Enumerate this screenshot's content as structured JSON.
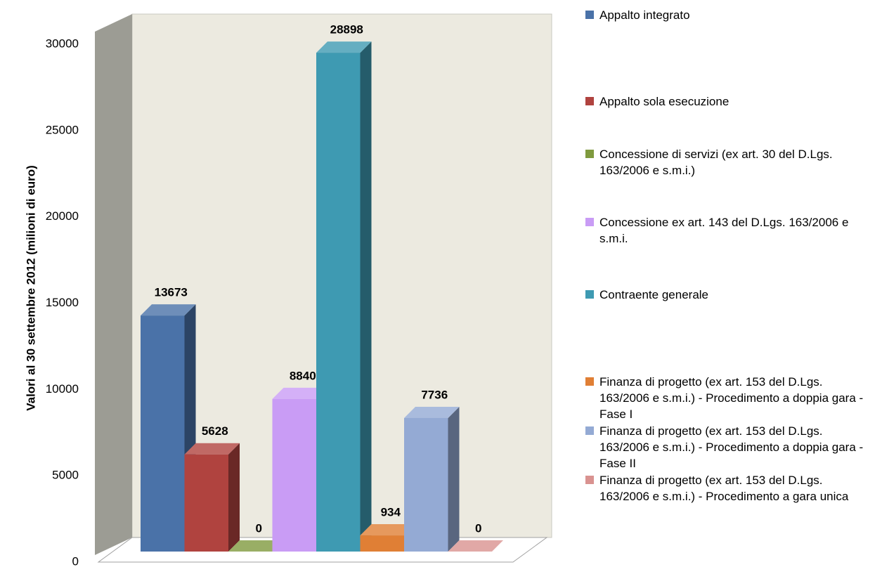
{
  "chart_data": {
    "type": "bar",
    "y_label": "Valori al 30 settembre 2012 (milioni di euro)",
    "categories": [
      null
    ],
    "series": [
      {
        "name": "Appalto integrato",
        "color": "#4a72a8",
        "values": [
          13673
        ]
      },
      {
        "name": "Appalto sola esecuzione",
        "color": "#b0433f",
        "values": [
          5628
        ]
      },
      {
        "name": "Concessione di servizi (ex art. 30 del D.Lgs. 163/2006 e s.m.i.)",
        "color": "#7f9a3e",
        "values": [
          0
        ]
      },
      {
        "name": "Concessione ex art. 143 del D.Lgs. 163/2006 e s.m.i.",
        "color": "#c99cf5",
        "values": [
          8840
        ]
      },
      {
        "name": "Contraente generale",
        "color": "#3e9ab2",
        "values": [
          28898
        ]
      },
      {
        "name": "Finanza di progetto (ex art. 153 del D.Lgs. 163/2006 e s.m.i.) - Procedimento a doppia gara - Fase I",
        "color": "#e07f35",
        "values": [
          934
        ]
      },
      {
        "name": "Finanza di progetto (ex art. 153 del D.Lgs. 163/2006 e s.m.i.) - Procedimento a doppia gara - Fase II",
        "color": "#94aad4",
        "values": [
          7736
        ]
      },
      {
        "name": "Finanza di progetto (ex art. 153 del D.Lgs. 163/2006 e s.m.i.) - Procedimento a gara unica",
        "color": "#d99290",
        "values": [
          0
        ]
      }
    ],
    "ylim": [
      0,
      30000
    ],
    "yticks": [
      0,
      5000,
      10000,
      15000,
      20000,
      25000,
      30000
    ],
    "legend": "right"
  }
}
